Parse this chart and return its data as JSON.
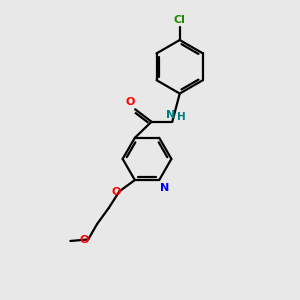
{
  "background_color": "#e8e8e8",
  "bond_color": "#000000",
  "atom_colors": {
    "O": "#ff0000",
    "N_amide": "#008080",
    "N_pyridine": "#0000ff",
    "Cl": "#228800",
    "H": "#008080"
  },
  "figsize": [
    3.0,
    3.0
  ],
  "dpi": 100
}
